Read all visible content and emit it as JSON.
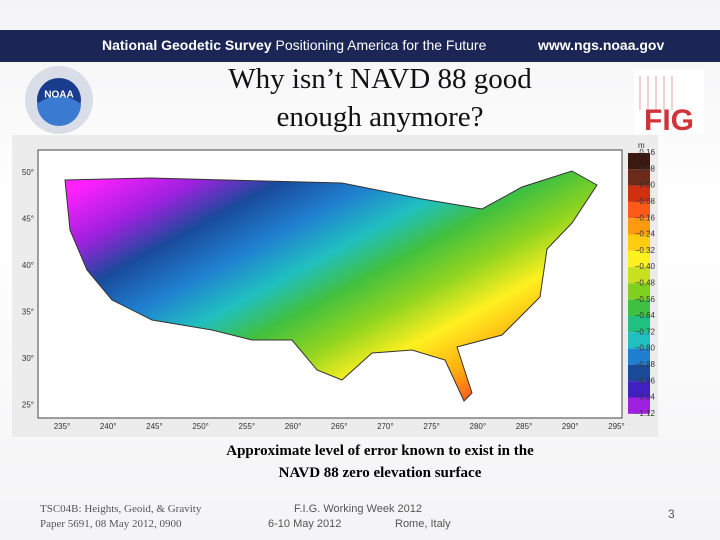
{
  "header": {
    "agency": "National Geodetic Survey",
    "tagline": "Positioning America for the Future",
    "url": "www.ngs.noaa.gov"
  },
  "logos": {
    "noaa": "NOAA",
    "fig": "FIG"
  },
  "title": [
    "Why isn’t NAVD 88 good",
    "enough anymore?"
  ],
  "map": {
    "latitudes": [
      "50°",
      "45°",
      "40°",
      "35°",
      "30°",
      "25°"
    ],
    "longitudes": [
      "235°",
      "240°",
      "245°",
      "250°",
      "255°",
      "260°",
      "265°",
      "270°",
      "275°",
      "280°",
      "285°",
      "290°",
      "295°"
    ],
    "colorbar_unit": "m",
    "colorbar_labels": [
      "0.16",
      "0.08",
      "0.00",
      "−0.08",
      "−0.16",
      "−0.24",
      "−0.32",
      "−0.40",
      "−0.48",
      "−0.56",
      "−0.64",
      "−0.72",
      "−0.80",
      "−0.88",
      "−0.96",
      "−1.04",
      "−1.12"
    ]
  },
  "caption": [
    "Approximate level of error known to exist in the",
    "NAVD 88 zero elevation surface"
  ],
  "footer": {
    "session": [
      "TSC04B: Heights, Geoid, & Gravity",
      "Paper 5691, 08 May 2012, 0900"
    ],
    "event": "F.I.G. Working Week 2012",
    "dates": "6-10 May 2012",
    "place": "Rome, Italy",
    "page": "3"
  }
}
